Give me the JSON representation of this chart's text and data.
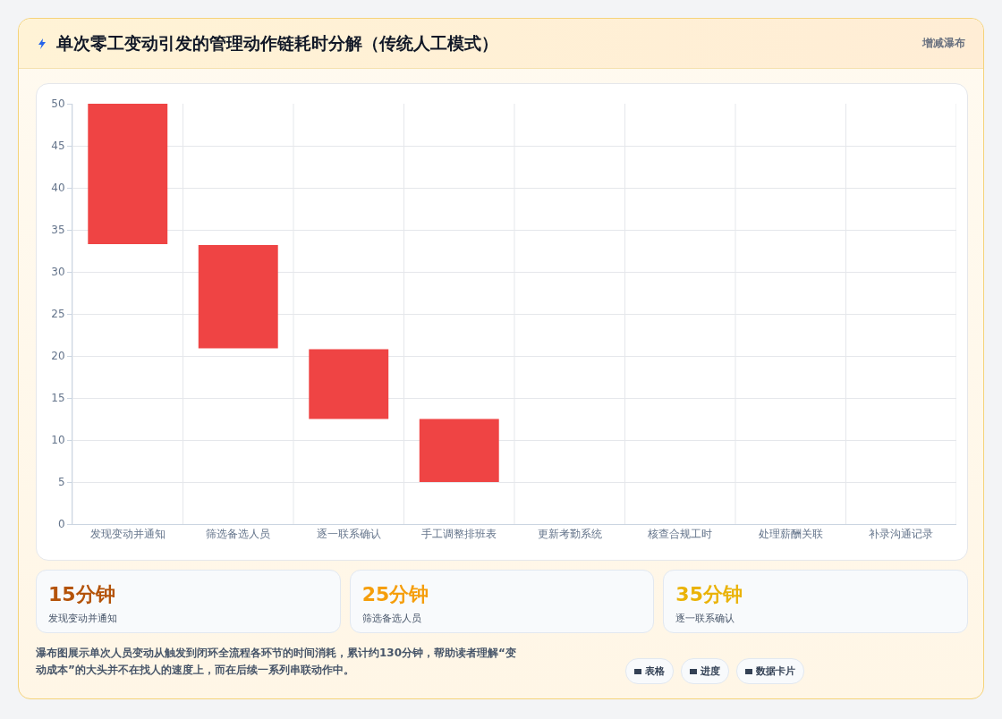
{
  "chart_data": {
    "type": "bar",
    "title": "单次零工变动引发的管理动作链耗时分解（传统人工模式）",
    "subtitle": "增减瀑布",
    "categories": [
      "发现变动并通知",
      "筛选备选人员",
      "逐一联系确认",
      "手工调整排班表",
      "更新考勤系统",
      "核查合规工时",
      "处理薪酬关联",
      "补录沟通记录"
    ],
    "values": [
      16.7,
      12.3,
      8.3,
      7.5,
      null,
      null,
      null,
      null
    ],
    "base": [
      33.3,
      20.9,
      12.5,
      5,
      null,
      null,
      null,
      null
    ],
    "color": "#ef4444",
    "ylim": [
      0,
      50
    ],
    "yticks": [
      0,
      5,
      10,
      15,
      20,
      25,
      30,
      35,
      40,
      45,
      50
    ],
    "grid": true,
    "legend": false,
    "annotations": [
      "15分钟",
      "发现变动并通知",
      "25分钟",
      "筛选备选人员",
      "35分钟",
      "逐一联系确认",
      "瀑布图展示单次人员变动从触发到闭环全流程各环节的时间消耗，累计约130分钟，帮助读者理解“变动成本”的大头并不在找人的速度上，而在后续一系列串联动作中。",
      "表格",
      "进度",
      "数据卡片"
    ]
  }
}
